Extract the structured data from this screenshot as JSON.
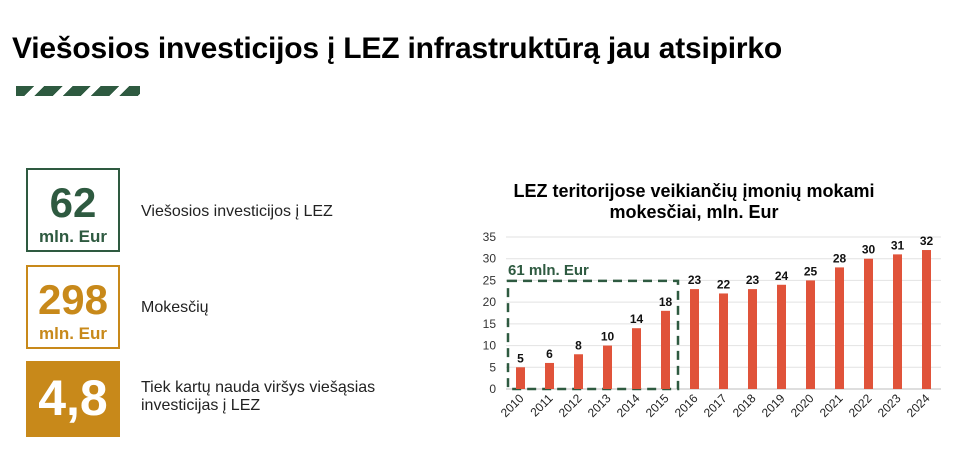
{
  "header": {
    "title": "Viešosios investicijos į LEZ infrastruktūrą jau atsipirko"
  },
  "stats": [
    {
      "value": "62",
      "unit": "mln. Eur",
      "label": "Viešosios investicijos į LEZ",
      "color": "#2e5a40"
    },
    {
      "value": "298",
      "unit": "mln. Eur",
      "label": "Mokesčių",
      "color": "#c8891a"
    },
    {
      "value": "4,8",
      "unit": "",
      "label": "Tiek kartų nauda viršys viešąsias investicijas į LEZ",
      "color": "#c8891a"
    }
  ],
  "colors": {
    "bar": "#e0533a",
    "dark_green": "#2e5a40",
    "gold": "#c8891a",
    "grid": "#e2e2e2"
  },
  "chart_data": {
    "type": "bar",
    "title": "LEZ teritorijose veikiančių įmonių mokami mokesčiai, mln. Eur",
    "xlabel": "",
    "ylabel": "",
    "categories": [
      "2010",
      "2011",
      "2012",
      "2013",
      "2014",
      "2015",
      "2016",
      "2017",
      "2018",
      "2019",
      "2020",
      "2021",
      "2022",
      "2023",
      "2024"
    ],
    "values": [
      5,
      6,
      8,
      10,
      14,
      18,
      23,
      22,
      23,
      24,
      25,
      28,
      30,
      31,
      32
    ],
    "ylim": [
      0,
      35
    ],
    "yticks": [
      0,
      5,
      10,
      15,
      20,
      25,
      30,
      35
    ],
    "grid": true,
    "annotation": {
      "text": "61 mln. Eur",
      "range": [
        "2010",
        "2015"
      ]
    }
  }
}
